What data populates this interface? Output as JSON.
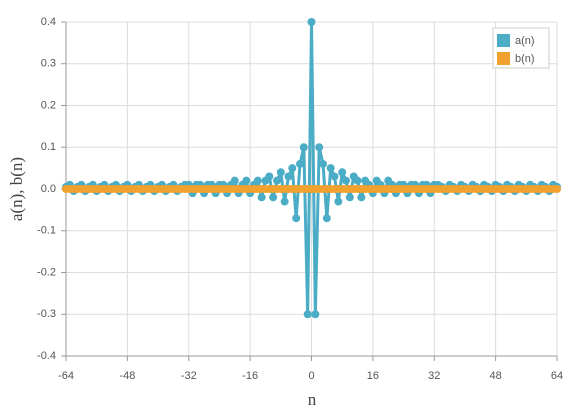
{
  "chart_data": {
    "type": "line",
    "xlabel": "n",
    "ylabel": "a(n), b(n)",
    "x": [
      -64,
      -63,
      -62,
      -61,
      -60,
      -59,
      -58,
      -57,
      -56,
      -55,
      -54,
      -53,
      -52,
      -51,
      -50,
      -49,
      -48,
      -47,
      -46,
      -45,
      -44,
      -43,
      -42,
      -41,
      -40,
      -39,
      -38,
      -37,
      -36,
      -35,
      -34,
      -33,
      -32,
      -31,
      -30,
      -29,
      -28,
      -27,
      -26,
      -25,
      -24,
      -23,
      -22,
      -21,
      -20,
      -19,
      -18,
      -17,
      -16,
      -15,
      -14,
      -13,
      -12,
      -11,
      -10,
      -9,
      -8,
      -7,
      -6,
      -5,
      -4,
      -3,
      -2,
      -1,
      0,
      1,
      2,
      3,
      4,
      5,
      6,
      7,
      8,
      9,
      10,
      11,
      12,
      13,
      14,
      15,
      16,
      17,
      18,
      19,
      20,
      21,
      22,
      23,
      24,
      25,
      26,
      27,
      28,
      29,
      30,
      31,
      32,
      33,
      34,
      35,
      36,
      37,
      38,
      39,
      40,
      41,
      42,
      43,
      44,
      45,
      46,
      47,
      48,
      49,
      50,
      51,
      52,
      53,
      54,
      55,
      56,
      57,
      58,
      59,
      60,
      61,
      62,
      63,
      64
    ],
    "series": [
      {
        "name": "a(n)",
        "color": "#4bacc6",
        "values": [
          0.005,
          0.01,
          -0.005,
          0.005,
          0.01,
          -0.005,
          0.005,
          0.01,
          -0.005,
          0.005,
          0.01,
          -0.005,
          0.005,
          0.01,
          -0.005,
          0.005,
          0.01,
          -0.005,
          0.005,
          0.01,
          -0.005,
          0.005,
          0.01,
          -0.005,
          0.005,
          0.01,
          -0.005,
          0.005,
          0.01,
          -0.005,
          0.005,
          0.01,
          0.01,
          -0.01,
          0.01,
          0.01,
          -0.01,
          0.01,
          0.01,
          -0.01,
          0.01,
          0.01,
          -0.01,
          0.01,
          0.02,
          -0.01,
          0.01,
          0.02,
          -0.01,
          0.01,
          0.02,
          -0.02,
          0.02,
          0.03,
          -0.02,
          0.02,
          0.04,
          -0.03,
          0.03,
          0.05,
          -0.07,
          0.06,
          0.1,
          -0.3,
          0.4,
          -0.3,
          0.1,
          0.06,
          -0.07,
          0.05,
          0.03,
          -0.03,
          0.04,
          0.02,
          -0.02,
          0.03,
          0.02,
          -0.02,
          0.02,
          0.01,
          -0.01,
          0.02,
          0.01,
          -0.01,
          0.02,
          0.01,
          -0.01,
          0.01,
          0.01,
          -0.01,
          0.01,
          0.01,
          -0.01,
          0.01,
          0.01,
          -0.01,
          0.01,
          0.01,
          0.005,
          -0.005,
          0.01,
          0.005,
          -0.005,
          0.01,
          0.005,
          -0.005,
          0.01,
          0.005,
          -0.005,
          0.01,
          0.005,
          -0.005,
          0.01,
          0.005,
          -0.005,
          0.01,
          0.005,
          -0.005,
          0.01,
          0.005,
          -0.005,
          0.01,
          0.005,
          -0.005,
          0.01,
          0.005,
          -0.005,
          0.01,
          0.005
        ]
      },
      {
        "name": "b(n)",
        "color": "#f0a12e",
        "values": [
          0,
          0,
          0,
          0,
          0,
          0,
          0,
          0,
          0,
          0,
          0,
          0,
          0,
          0,
          0,
          0,
          0,
          0,
          0,
          0,
          0,
          0,
          0,
          0,
          0,
          0,
          0,
          0,
          0,
          0,
          0,
          0,
          0,
          0,
          0,
          0,
          0,
          0,
          0,
          0,
          0,
          0,
          0,
          0,
          0,
          0,
          0,
          0,
          0,
          0,
          0,
          0,
          0,
          0,
          0,
          0,
          0,
          0,
          0,
          0,
          0,
          0,
          0,
          0,
          0,
          0,
          0,
          0,
          0,
          0,
          0,
          0,
          0,
          0,
          0,
          0,
          0,
          0,
          0,
          0,
          0,
          0,
          0,
          0,
          0,
          0,
          0,
          0,
          0,
          0,
          0,
          0,
          0,
          0,
          0,
          0,
          0,
          0,
          0,
          0,
          0,
          0,
          0,
          0,
          0,
          0,
          0,
          0,
          0,
          0,
          0,
          0,
          0,
          0,
          0,
          0,
          0,
          0,
          0,
          0,
          0,
          0,
          0,
          0,
          0,
          0,
          0,
          0,
          0
        ]
      }
    ],
    "xlim": [
      -64,
      64
    ],
    "xticks": [
      -64,
      -48,
      -32,
      -16,
      0,
      16,
      32,
      48,
      64
    ],
    "ylim": [
      -0.4,
      0.4
    ],
    "yticks": [
      0.4,
      0.3,
      0.2,
      0.1,
      {
        "value": 0,
        "label": "0.0"
      },
      -0.1,
      -0.2,
      -0.3,
      -0.4
    ],
    "grid": true,
    "legend": "top-right"
  }
}
